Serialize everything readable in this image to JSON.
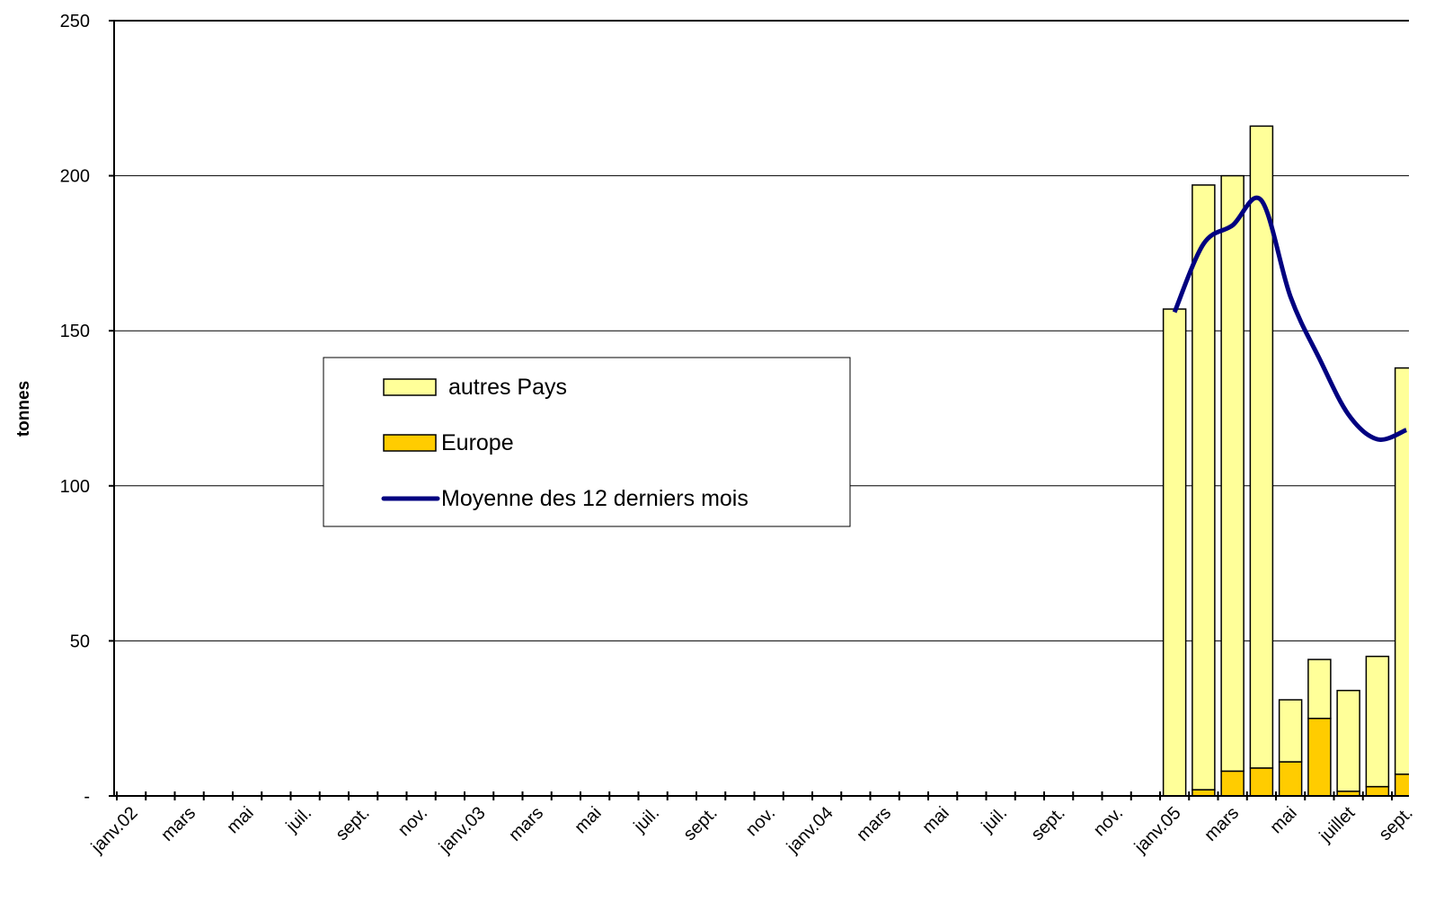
{
  "chart_data": {
    "type": "bar",
    "stacked": true,
    "y_label": "tonnes",
    "categories": [
      "janv.02",
      null,
      "mars",
      null,
      "mai",
      null,
      "juil.",
      null,
      "sept.",
      null,
      "nov.",
      null,
      "janv.03",
      null,
      "mars",
      null,
      "mai",
      null,
      "juil.",
      null,
      "sept.",
      null,
      "nov.",
      null,
      "janv.04",
      null,
      "mars",
      null,
      "mai",
      null,
      "juil.",
      null,
      "sept.",
      null,
      "nov.",
      null,
      "janv.05",
      null,
      "mars",
      null,
      "mai",
      null,
      "juillet",
      null,
      "sept."
    ],
    "series": [
      {
        "name": "Europe",
        "type": "bar",
        "color": "#ffcc00",
        "values": [
          null,
          null,
          null,
          null,
          null,
          null,
          null,
          null,
          null,
          null,
          null,
          null,
          null,
          null,
          null,
          null,
          null,
          null,
          null,
          null,
          null,
          null,
          null,
          null,
          null,
          null,
          null,
          null,
          null,
          null,
          null,
          null,
          null,
          null,
          null,
          null,
          0,
          2,
          8,
          9,
          11,
          25,
          1.5,
          3,
          7
        ]
      },
      {
        "name": "autres Pays",
        "type": "bar",
        "color": "#ffff99",
        "values": [
          null,
          null,
          null,
          null,
          null,
          null,
          null,
          null,
          null,
          null,
          null,
          null,
          null,
          null,
          null,
          null,
          null,
          null,
          null,
          null,
          null,
          null,
          null,
          null,
          null,
          null,
          null,
          null,
          null,
          null,
          null,
          null,
          null,
          null,
          null,
          null,
          157,
          195,
          192,
          207,
          20,
          19,
          32.5,
          42,
          131
        ]
      },
      {
        "name": "Moyenne des 12 derniers mois",
        "type": "line",
        "color": "#000080",
        "values": [
          null,
          null,
          null,
          null,
          null,
          null,
          null,
          null,
          null,
          null,
          null,
          null,
          null,
          null,
          null,
          null,
          null,
          null,
          null,
          null,
          null,
          null,
          null,
          null,
          null,
          null,
          null,
          null,
          null,
          null,
          null,
          null,
          null,
          null,
          null,
          null,
          156,
          178,
          184,
          192,
          161,
          141,
          123,
          115,
          118
        ]
      }
    ],
    "ylim": [
      0,
      250
    ],
    "yticks": [
      {
        "value": 0,
        "label": "-"
      },
      50,
      100,
      150,
      200,
      250
    ],
    "grid": true,
    "legend": "center-left"
  }
}
